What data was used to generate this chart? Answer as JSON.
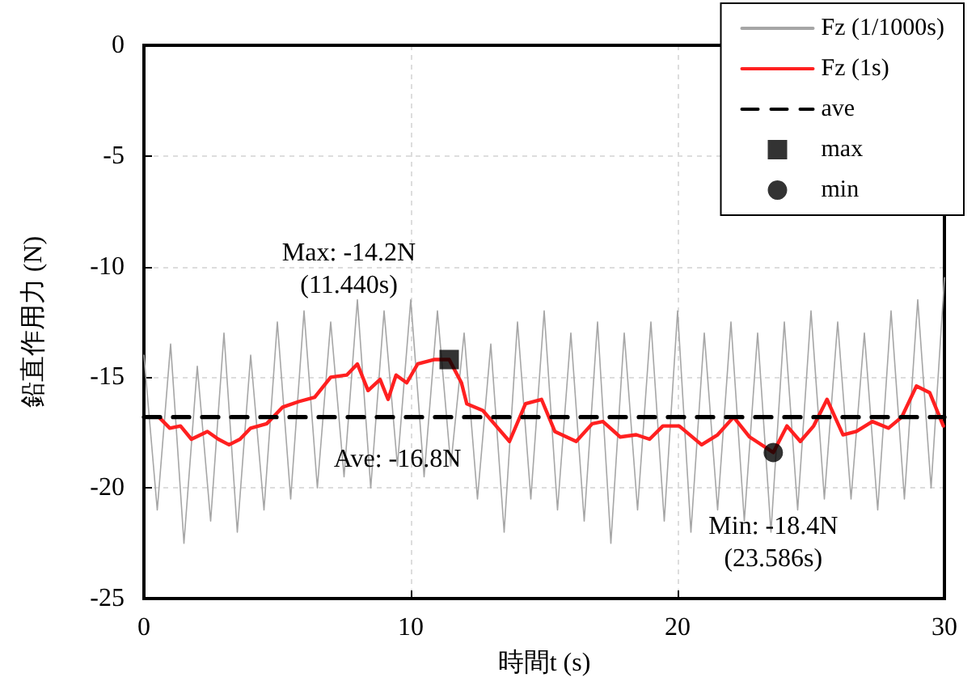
{
  "chart_data": {
    "type": "line",
    "xlabel": "時間t (s)",
    "ylabel": "鉛直作用力 (N)",
    "xlim": [
      0,
      30
    ],
    "xticks": [
      0,
      10,
      20,
      30
    ],
    "ylim": [
      -25,
      0
    ],
    "yticks": [
      -25,
      -20,
      -15,
      -10,
      -5,
      0
    ],
    "grid": true,
    "legend": "top right",
    "series": [
      {
        "name": "Fz (1/1000s)",
        "color": "#a6a6a6",
        "marker": "none",
        "line_style": "solid",
        "x": [
          0,
          0.5,
          1,
          1.5,
          2,
          2.5,
          3,
          3.5,
          4,
          4.5,
          5,
          5.5,
          6,
          6.5,
          7,
          7.5,
          8,
          8.5,
          9,
          9.5,
          10,
          10.5,
          11,
          11.5,
          12,
          12.5,
          13,
          13.5,
          14,
          14.5,
          15,
          15.5,
          16,
          16.5,
          17,
          17.5,
          18,
          18.5,
          19,
          19.5,
          20,
          20.5,
          21,
          21.5,
          22,
          22.5,
          23,
          23.5,
          24,
          24.5,
          25,
          25.5,
          26,
          26.5,
          27,
          27.5,
          28,
          28.5,
          29,
          29.5,
          30
        ],
        "values": [
          -14,
          -21,
          -13.5,
          -22.5,
          -14.5,
          -21.5,
          -13,
          -22,
          -14,
          -21,
          -12.5,
          -20.5,
          -12,
          -20,
          -12.5,
          -19.5,
          -11.5,
          -20,
          -12,
          -19,
          -11.5,
          -19.5,
          -12,
          -19,
          -13,
          -20.5,
          -13.5,
          -22,
          -12.5,
          -20.5,
          -12,
          -21,
          -13,
          -21.5,
          -12.5,
          -22.5,
          -13,
          -21,
          -12.5,
          -21.5,
          -12,
          -22,
          -13,
          -21,
          -12.5,
          -21.5,
          -13,
          -22,
          -12.5,
          -21,
          -12,
          -20.5,
          -12.5,
          -20.5,
          -13,
          -21,
          -12,
          -20.5,
          -11.5,
          -20,
          -10.5
        ]
      },
      {
        "name": "Fz (1s)",
        "color": "#ff2020",
        "marker": "none",
        "line_style": "solid",
        "x": [
          0.56,
          0.97,
          1.37,
          1.78,
          2.38,
          2.79,
          3.19,
          3.6,
          4.0,
          4.6,
          5.2,
          5.8,
          6.4,
          7.0,
          7.6,
          8.0,
          8.4,
          8.85,
          9.15,
          9.45,
          9.85,
          10.26,
          10.87,
          11.44,
          11.9,
          12.1,
          12.7,
          13.2,
          13.7,
          14.3,
          14.9,
          15.4,
          16.2,
          16.8,
          17.2,
          17.85,
          18.45,
          18.95,
          19.45,
          20.06,
          20.9,
          21.5,
          22.1,
          22.7,
          23.586,
          24.1,
          24.6,
          25.1,
          25.6,
          26.2,
          26.7,
          27.3,
          27.9,
          28.4,
          28.95,
          29.45,
          29.96
        ],
        "values": [
          -16.8,
          -17.3,
          -17.2,
          -17.8,
          -17.45,
          -17.8,
          -18.05,
          -17.8,
          -17.3,
          -17.1,
          -16.35,
          -16.1,
          -15.9,
          -15,
          -14.9,
          -14.4,
          -15.6,
          -15.1,
          -16,
          -14.9,
          -15.25,
          -14.4,
          -14.2,
          -14.2,
          -15.25,
          -16.2,
          -16.5,
          -17.2,
          -17.9,
          -16.2,
          -16,
          -17.45,
          -17.9,
          -17.1,
          -17,
          -17.7,
          -17.6,
          -17.8,
          -17.2,
          -17.2,
          -18.05,
          -17.6,
          -16.8,
          -17.7,
          -18.4,
          -17.2,
          -17.9,
          -17.2,
          -16,
          -17.6,
          -17.45,
          -17,
          -17.3,
          -16.8,
          -15.4,
          -15.7,
          -17.2
        ]
      },
      {
        "name": "ave",
        "color": "#000000",
        "marker": "none",
        "line_style": "dashed",
        "x": [
          0,
          30
        ],
        "values": [
          -16.8,
          -16.8
        ]
      },
      {
        "name": "max",
        "type": "scatter",
        "color": "#000000",
        "marker": "square",
        "x": [
          11.44
        ],
        "values": [
          -14.2
        ]
      },
      {
        "name": "min",
        "type": "scatter",
        "color": "#000000",
        "marker": "circle",
        "x": [
          23.586
        ],
        "values": [
          -18.4
        ]
      }
    ],
    "annotations": [
      {
        "text": "Max: -14.2N\n(11.440s)",
        "x": 11.44,
        "y": -14.2
      },
      {
        "text": "Ave: -16.8N",
        "x": 9.5,
        "y": -16.8
      },
      {
        "text": "Min: -18.4N\n(23.586s)",
        "x": 23.586,
        "y": -18.4
      }
    ]
  }
}
